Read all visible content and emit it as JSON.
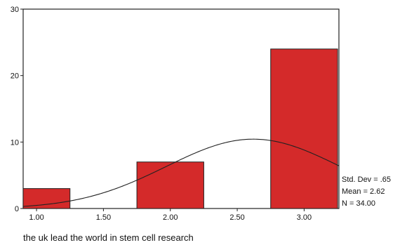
{
  "chart_data": {
    "type": "bar",
    "subtype": "histogram-with-normal-curve",
    "xlabel": "the uk lead the world in stem cell research",
    "ylabel": "",
    "title": "",
    "x_ticks": [
      "1.00",
      "1.50",
      "2.00",
      "2.50",
      "3.00"
    ],
    "x_tick_values": [
      1.0,
      1.5,
      2.0,
      2.5,
      3.0
    ],
    "y_ticks": [
      0,
      10,
      20,
      30
    ],
    "xlim": [
      0.9,
      3.26
    ],
    "ylim": [
      0,
      30
    ],
    "bins": [
      {
        "x0": 0.9,
        "x1": 1.25,
        "count": 3
      },
      {
        "x0": 1.75,
        "x1": 2.25,
        "count": 7
      },
      {
        "x0": 2.75,
        "x1": 3.25,
        "count": 24
      }
    ],
    "normal_curve": {
      "mean": 2.62,
      "std_dev": 0.65,
      "n": 34,
      "bin_width": 0.5
    },
    "stats": [
      "Std. Dev = .65",
      "Mean = 2.62",
      "N = 34.00"
    ],
    "bar_color": "#d42a2a",
    "grid": false,
    "legend": "none"
  }
}
